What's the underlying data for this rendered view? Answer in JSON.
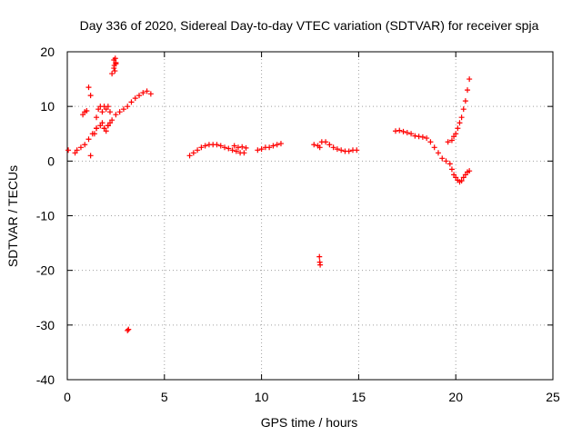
{
  "chart_data": {
    "type": "scatter",
    "title": "Day 336 of 2020, Sidereal Day-to-day VTEC variation (SDTVAR) for receiver spja",
    "xlabel": "GPS time / hours",
    "ylabel": "SDTVAR / TECUs",
    "xlim": [
      0,
      25
    ],
    "ylim": [
      -40,
      20
    ],
    "x_ticks": [
      0,
      5,
      10,
      15,
      20,
      25
    ],
    "y_ticks": [
      -40,
      -30,
      -20,
      -10,
      0,
      10,
      20
    ],
    "x_tick_labels": [
      "0",
      "5",
      "10",
      "15",
      "20",
      "25"
    ],
    "y_tick_labels": [
      "-40",
      "-30",
      "-20",
      "-10",
      "0",
      "10",
      "20"
    ],
    "grid": true,
    "marker": "plus",
    "color": "#ff0000",
    "series": [
      {
        "name": "SDTVAR",
        "x": [
          0.05,
          0.4,
          0.5,
          0.7,
          0.9,
          1.1,
          1.3,
          1.5,
          1.7,
          1.9,
          2.1,
          2.3,
          2.5,
          2.7,
          2.9,
          3.1,
          3.3,
          3.5,
          3.7,
          3.9,
          4.1,
          4.3,
          0.8,
          0.9,
          1.0,
          1.1,
          1.2,
          1.2,
          1.5,
          1.4,
          1.5,
          1.6,
          1.7,
          1.8,
          1.9,
          2.0,
          2.1,
          2.2,
          1.8,
          1.9,
          2.0,
          2.1,
          2.2,
          2.3,
          2.4,
          2.5,
          2.4,
          2.42,
          2.45,
          2.47,
          2.5,
          3.1,
          3.15,
          6.3,
          6.5,
          6.7,
          6.9,
          7.1,
          7.3,
          7.5,
          7.7,
          7.9,
          8.1,
          8.3,
          8.5,
          8.7,
          8.9,
          9.1,
          8.6,
          8.8,
          9.0,
          9.2,
          9.8,
          10.0,
          10.2,
          10.4,
          10.6,
          10.8,
          11.0,
          12.7,
          12.9,
          13.0,
          13.1,
          13.3,
          13.5,
          13.7,
          13.9,
          14.1,
          14.3,
          14.5,
          14.7,
          14.9,
          12.98,
          13.0,
          13.02,
          16.9,
          17.1,
          17.3,
          17.5,
          17.7,
          17.9,
          18.1,
          18.3,
          18.5,
          18.7,
          18.9,
          19.1,
          19.3,
          19.5,
          19.7,
          19.8,
          19.9,
          20.0,
          20.1,
          20.2,
          20.3,
          20.4,
          20.5,
          20.6,
          20.7,
          19.6,
          19.8,
          19.9,
          20.0,
          20.1,
          20.2,
          20.3,
          20.4,
          20.5,
          20.6,
          20.7
        ],
        "y": [
          2.0,
          1.5,
          2.0,
          2.5,
          3.0,
          4.0,
          5.0,
          6.0,
          6.5,
          6.0,
          6.5,
          7.5,
          8.5,
          9.0,
          9.5,
          10.0,
          10.8,
          11.5,
          12.0,
          12.5,
          12.8,
          12.3,
          8.5,
          9.0,
          9.2,
          13.5,
          12.0,
          1.0,
          6.0,
          5.0,
          8.0,
          9.5,
          10.0,
          9.0,
          10.0,
          9.5,
          10.0,
          9.0,
          7.0,
          6.0,
          5.5,
          6.5,
          7.0,
          16.0,
          17.0,
          18.0,
          18.5,
          17.5,
          16.5,
          18.8,
          17.8,
          -31.0,
          -30.8,
          1.0,
          1.5,
          2.0,
          2.5,
          2.8,
          3.0,
          3.0,
          3.0,
          2.8,
          2.5,
          2.3,
          2.0,
          1.8,
          1.5,
          1.5,
          2.8,
          2.5,
          2.6,
          2.4,
          2.0,
          2.2,
          2.5,
          2.5,
          2.8,
          3.0,
          3.2,
          3.0,
          2.8,
          2.5,
          3.5,
          3.5,
          3.0,
          2.5,
          2.2,
          2.0,
          1.8,
          1.8,
          2.0,
          2.0,
          -17.5,
          -18.5,
          -19.0,
          5.5,
          5.6,
          5.4,
          5.2,
          5.0,
          4.6,
          4.5,
          4.4,
          4.2,
          3.5,
          2.5,
          1.5,
          0.5,
          0.0,
          -0.5,
          -1.5,
          -2.5,
          -3.0,
          -3.5,
          -3.8,
          -3.6,
          -3.0,
          -2.5,
          -2.0,
          -1.8,
          3.5,
          3.8,
          4.5,
          5.0,
          6.0,
          7.0,
          8.0,
          9.5,
          11.0,
          13.0,
          15.0
        ]
      }
    ]
  }
}
